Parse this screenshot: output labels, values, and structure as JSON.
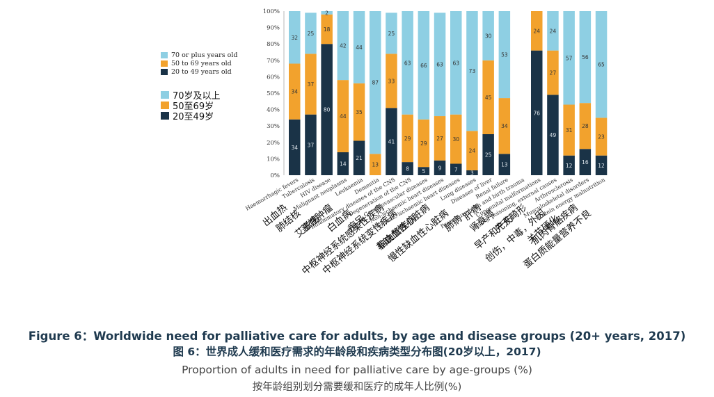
{
  "colors": {
    "old": "#8ecfe3",
    "mid": "#f2a22d",
    "young": "#1a3347",
    "axis": "#333333",
    "title": "#1f3a4f"
  },
  "legend": {
    "en": [
      "70 or plus years old",
      "50 to 69 years old",
      "20 to 49 years old"
    ],
    "zh": [
      "70岁及以上",
      "50至69岁",
      "20至49岁"
    ]
  },
  "figure": {
    "title_en": "Figure 6：Worldwide need for palliative care for adults, by age and disease groups (20+ years, 2017)",
    "title_zh": "图 6：世界成人缓和医疗需求的年龄段和疾病类型分布图(20岁以上，2017)",
    "subtitle_en": "Proportion of adults in need for palliative care by age-groups (%)",
    "subtitle_zh": "按年龄组别划分需要缓和医疗的成年人比例(%)"
  },
  "chart_data": {
    "type": "bar",
    "stacked": true,
    "ylim": [
      0,
      100
    ],
    "yticks": [
      "0%",
      "10%",
      "20%",
      "30%",
      "40%",
      "50%",
      "60%",
      "70%",
      "80%",
      "90%",
      "100%"
    ],
    "categories": [
      {
        "en": "Haemorrhagic fevers",
        "zh": "出血热"
      },
      {
        "en": "Tuberculosis",
        "zh": "肺结核"
      },
      {
        "en": "HIV disease",
        "zh": "艾滋病"
      },
      {
        "en": "Malignant neoplasms",
        "zh": "恶性肿瘤"
      },
      {
        "en": "Leukaemia",
        "zh": "白血病"
      },
      {
        "en": "Dementia",
        "zh": "痴呆"
      },
      {
        "en": "Inflammatory diseases of the CNS",
        "zh": "中枢神经系统感染性疾病"
      },
      {
        "en": "Degeneration of the CNS",
        "zh": "中枢神经系统变性疾病"
      },
      {
        "en": "Cerebrovascular diseases",
        "zh": "脑血管疾病"
      },
      {
        "en": "Non-ischaemic heart diseases",
        "zh": "非缺血性心脏病"
      },
      {
        "en": "Chronic ischaemic heart diseases",
        "zh": "慢性缺血性心脏病"
      },
      {
        "en": "Lung diseases",
        "zh": "肺病"
      },
      {
        "en": "Diseases of liver",
        "zh": "肝病"
      },
      {
        "en": "Renal failure",
        "zh": "肾衰竭"
      },
      {
        "en": "Premature birth and birth trauma",
        "zh": "早产和产伤"
      },
      {
        "en": "Congenital malformations",
        "zh": "先天畸形"
      },
      {
        "en": "Injury, poisoning, external causes",
        "zh": "创伤，中毒，外因"
      },
      {
        "en": "Arthrosclerosis",
        "zh": "关节硬化"
      },
      {
        "en": "Musculoskeletal disorders",
        "zh": "肌肉骨骼疾病"
      },
      {
        "en": "Protein energy malnutrition",
        "zh": "蛋白质能量营养不良"
      }
    ],
    "series": [
      {
        "name": "20 to 49 years old",
        "values": [
          34,
          37,
          80,
          14,
          21,
          0,
          41,
          8,
          5,
          9,
          7,
          3,
          25,
          13,
          null,
          76,
          49,
          12,
          16,
          12
        ],
        "labels": [
          "34",
          "37",
          "80",
          "14",
          "21",
          "",
          "41",
          "8",
          "5",
          "9",
          "7",
          "3",
          "25",
          "13",
          "",
          "76",
          "49",
          "12",
          "16",
          "12"
        ]
      },
      {
        "name": "50 to 69 years old",
        "values": [
          34,
          37,
          18,
          44,
          35,
          13,
          33,
          29,
          29,
          27,
          30,
          24,
          45,
          34,
          null,
          24,
          27,
          31,
          28,
          23
        ],
        "labels": [
          "34",
          "37",
          "18",
          "44",
          "35",
          "13",
          "33",
          "29",
          "29",
          "27",
          "30",
          "24",
          "45",
          "34",
          "",
          "24",
          "27",
          "31",
          "28",
          "23"
        ]
      },
      {
        "name": "70 or plus years old",
        "values": [
          32,
          25,
          2,
          42,
          44,
          87,
          25,
          63,
          66,
          63,
          63,
          73,
          30,
          53,
          null,
          0,
          24,
          57,
          56,
          65
        ],
        "labels": [
          "32",
          "25",
          "2",
          "42",
          "44",
          "87",
          "25",
          "63",
          "66",
          "63",
          "63",
          "73",
          "30",
          "53",
          "",
          "",
          "24",
          "57",
          "56",
          "65"
        ]
      }
    ]
  }
}
